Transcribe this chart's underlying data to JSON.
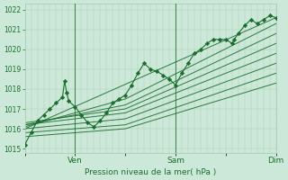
{
  "xlabel": "Pression niveau de la mer( hPa )",
  "bg_color": "#cce8d8",
  "line_color": "#1a6e2e",
  "grid_color_minor": "#a8c8b0",
  "grid_color_major": "#a8c8b0",
  "ylim": [
    1014.8,
    1022.3
  ],
  "yticks": [
    1015,
    1016,
    1017,
    1018,
    1019,
    1020,
    1021,
    1022
  ],
  "xlim": [
    0,
    120
  ],
  "xtick_labels": [
    "",
    "Ven",
    "",
    "Sam",
    "",
    "Dim"
  ],
  "xtick_positions": [
    0,
    24,
    48,
    72,
    96,
    120
  ],
  "day_lines": [
    24,
    72,
    120
  ],
  "main_line": [
    [
      0,
      1015.2
    ],
    [
      3,
      1015.8
    ],
    [
      6,
      1016.4
    ],
    [
      9,
      1016.7
    ],
    [
      12,
      1017.0
    ],
    [
      15,
      1017.3
    ],
    [
      18,
      1017.6
    ],
    [
      19,
      1018.4
    ],
    [
      20,
      1017.8
    ],
    [
      21,
      1017.4
    ],
    [
      24,
      1017.1
    ],
    [
      27,
      1016.7
    ],
    [
      30,
      1016.3
    ],
    [
      33,
      1016.1
    ],
    [
      36,
      1016.4
    ],
    [
      39,
      1016.8
    ],
    [
      42,
      1017.3
    ],
    [
      45,
      1017.5
    ],
    [
      48,
      1017.7
    ],
    [
      51,
      1018.2
    ],
    [
      54,
      1018.8
    ],
    [
      57,
      1019.3
    ],
    [
      60,
      1019.0
    ],
    [
      63,
      1018.9
    ],
    [
      66,
      1018.7
    ],
    [
      69,
      1018.5
    ],
    [
      72,
      1018.2
    ],
    [
      75,
      1018.8
    ],
    [
      78,
      1019.3
    ],
    [
      81,
      1019.8
    ],
    [
      84,
      1020.0
    ],
    [
      87,
      1020.3
    ],
    [
      90,
      1020.5
    ],
    [
      93,
      1020.5
    ],
    [
      96,
      1020.5
    ],
    [
      99,
      1020.3
    ],
    [
      100,
      1020.5
    ],
    [
      102,
      1020.8
    ],
    [
      105,
      1021.2
    ],
    [
      108,
      1021.5
    ],
    [
      111,
      1021.3
    ],
    [
      114,
      1021.5
    ],
    [
      117,
      1021.7
    ],
    [
      120,
      1021.6
    ]
  ],
  "ensemble_lines": [
    [
      [
        0,
        1016.0
      ],
      [
        120,
        1021.6
      ]
    ],
    [
      [
        0,
        1016.1
      ],
      [
        48,
        1017.5
      ],
      [
        120,
        1021.3
      ]
    ],
    [
      [
        0,
        1016.2
      ],
      [
        48,
        1017.2
      ],
      [
        120,
        1020.8
      ]
    ],
    [
      [
        0,
        1016.3
      ],
      [
        48,
        1017.0
      ],
      [
        120,
        1020.3
      ]
    ],
    [
      [
        0,
        1016.2
      ],
      [
        48,
        1016.8
      ],
      [
        120,
        1019.8
      ]
    ],
    [
      [
        0,
        1016.0
      ],
      [
        48,
        1016.5
      ],
      [
        120,
        1019.3
      ]
    ],
    [
      [
        0,
        1015.8
      ],
      [
        48,
        1016.2
      ],
      [
        120,
        1018.8
      ]
    ],
    [
      [
        0,
        1015.6
      ],
      [
        48,
        1016.0
      ],
      [
        120,
        1018.3
      ]
    ]
  ]
}
